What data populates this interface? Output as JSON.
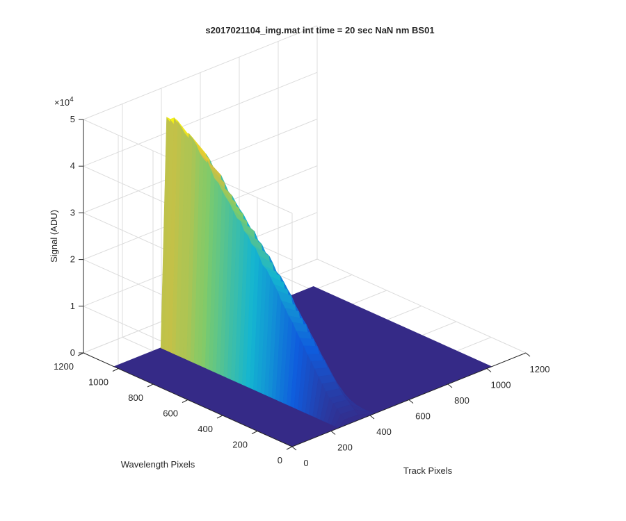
{
  "chart_data": {
    "type": "surface",
    "title": "s2017021104_img.mat int time = 20 sec  NaN nm BS01",
    "xlabel": "Track Pixels",
    "ylabel": "Wavelength Pixels",
    "zlabel": "Signal (ADU)",
    "z_multiplier_label": "×10",
    "z_multiplier_exponent": "4",
    "xlim": [
      0,
      1200
    ],
    "ylim": [
      0,
      1200
    ],
    "zlim": [
      0,
      50000
    ],
    "x_ticks": [
      "0",
      "200",
      "400",
      "600",
      "800",
      "1000",
      "1200"
    ],
    "y_ticks": [
      "0",
      "200",
      "400",
      "600",
      "800",
      "1000",
      "1200"
    ],
    "z_ticks": [
      "0",
      "1",
      "2",
      "3",
      "4",
      "5"
    ],
    "grid": true,
    "colormap": "parula",
    "surface": {
      "x_range": [
        1,
        1024
      ],
      "y_range": [
        1,
        1024
      ],
      "peak_band_x_range": [
        270,
        340
      ],
      "peak_profile_y": [
        0,
        100,
        200,
        300,
        400,
        500,
        600,
        700,
        800,
        900,
        1000,
        1024
      ],
      "peak_profile_z": [
        1200,
        5000,
        11000,
        17000,
        23000,
        28500,
        33500,
        38500,
        43500,
        47500,
        49500,
        49000
      ],
      "background_z": 0
    },
    "colors": {
      "low": "#352a87",
      "mid": "#0f5cdd",
      "teal": "#14b5d0",
      "green": "#7dcb6b",
      "high": "#f9fb0e",
      "grid": "#dcdcdc",
      "axis": "#262626"
    }
  }
}
